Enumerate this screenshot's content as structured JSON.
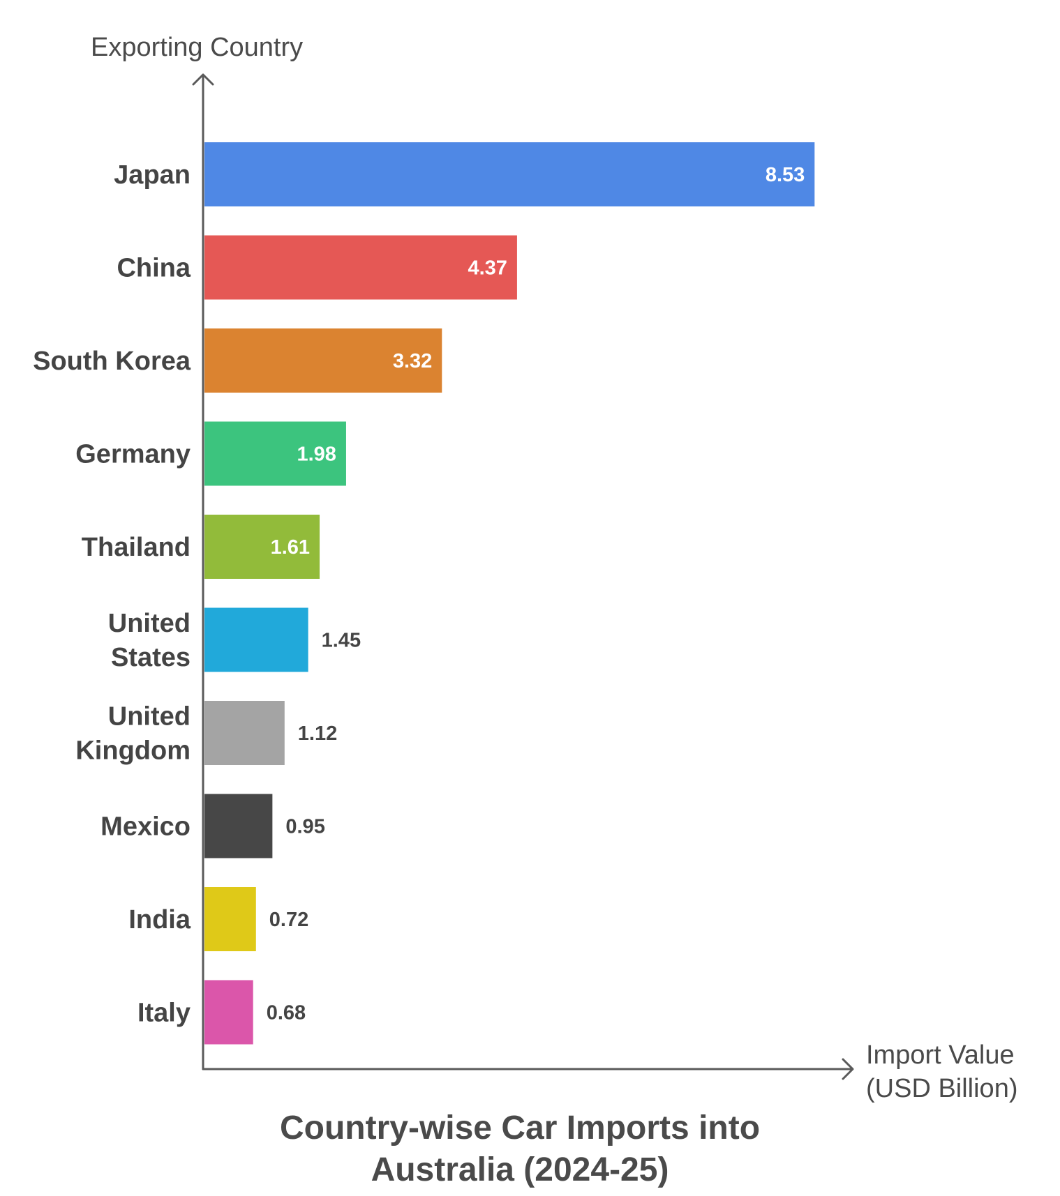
{
  "chart_data": {
    "type": "bar",
    "orientation": "horizontal",
    "title": "Country-wise Car Imports into Australia (2024-25)",
    "title_lines": [
      "Country-wise Car Imports into",
      "Australia (2024-25)"
    ],
    "ylabel": "Exporting Country",
    "xlabel": "Import Value (USD Billion)",
    "xlabel_lines": [
      "Import Value",
      "(USD Billion)"
    ],
    "grid": false,
    "categories": [
      "Japan",
      "China",
      "South Korea",
      "Germany",
      "Thailand",
      "United States",
      "United Kingdom",
      "Mexico",
      "India",
      "Italy"
    ],
    "category_lines": [
      [
        "Japan"
      ],
      [
        "China"
      ],
      [
        "South Korea"
      ],
      [
        "Germany"
      ],
      [
        "Thailand"
      ],
      [
        "United",
        "States"
      ],
      [
        "United",
        "Kingdom"
      ],
      [
        "Mexico"
      ],
      [
        "India"
      ],
      [
        "Italy"
      ]
    ],
    "values": [
      8.53,
      4.37,
      3.32,
      1.98,
      1.61,
      1.45,
      1.12,
      0.95,
      0.72,
      0.68
    ],
    "value_labels": [
      "8.53",
      "4.37",
      "3.32",
      "1.98",
      "1.61",
      "1.45",
      "1.12",
      "0.95",
      "0.72",
      "0.68"
    ],
    "colors": [
      "#4f88e5",
      "#e55855",
      "#db8330",
      "#3cc47e",
      "#92bb3a",
      "#21a9da",
      "#a4a4a4",
      "#474747",
      "#dfc918",
      "#db56aa"
    ],
    "xlim": [
      0,
      10
    ]
  }
}
